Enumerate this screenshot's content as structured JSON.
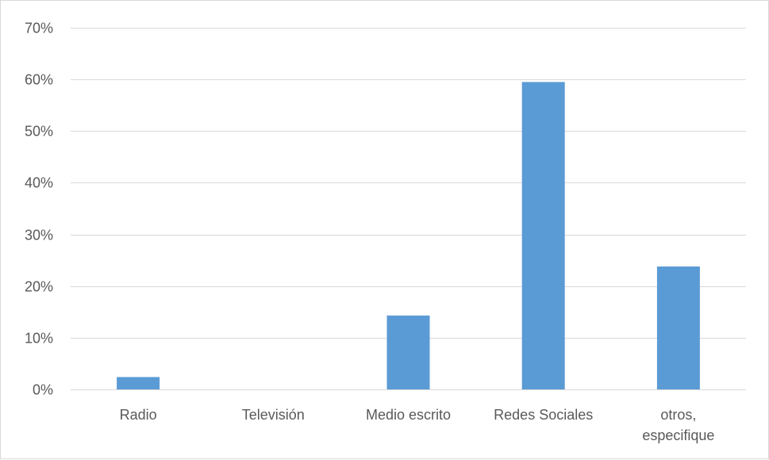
{
  "chart_data": {
    "type": "bar",
    "title": "",
    "xlabel": "",
    "ylabel": "",
    "categories": [
      "Radio",
      "Televisión",
      "Medio escrito",
      "Redes Sociales",
      "otros, especifique"
    ],
    "category_lines": [
      [
        "Radio"
      ],
      [
        "Televisión"
      ],
      [
        "Medio escrito"
      ],
      [
        "Redes Sociales"
      ],
      [
        "otros,",
        "especifique"
      ]
    ],
    "values": [
      2.4,
      0,
      14.3,
      59.5,
      23.8
    ],
    "ylim": [
      0,
      70
    ],
    "yticks": [
      0,
      10,
      20,
      30,
      40,
      50,
      60,
      70
    ],
    "ytick_labels": [
      "0%",
      "10%",
      "20%",
      "30%",
      "40%",
      "50%",
      "60%",
      "70%"
    ],
    "grid": true,
    "legend": "none",
    "bar_color": "#5b9bd5"
  }
}
